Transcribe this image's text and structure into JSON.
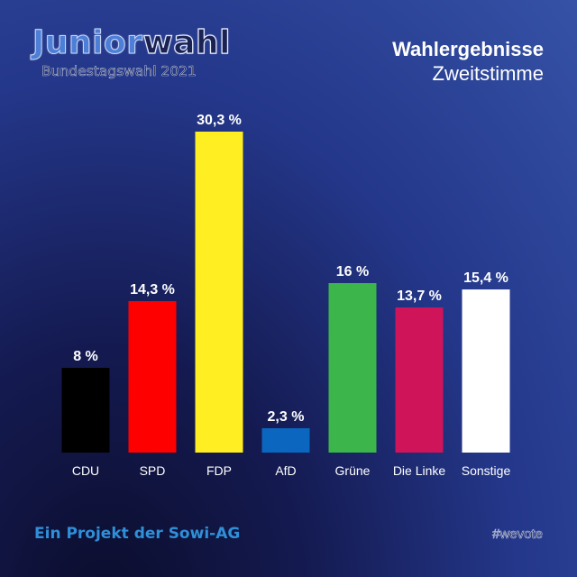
{
  "logo": {
    "part1": "Junior",
    "part2": "wahl",
    "subtitle": "Bundestagswahl 2021"
  },
  "header": {
    "title": "Wahlergebnisse",
    "subtitle": "Zweitstimme"
  },
  "chart_data": {
    "type": "bar",
    "title": "Wahlergebnisse",
    "subtitle": "Zweitstimme",
    "categories": [
      "CDU",
      "SPD",
      "FDP",
      "AfD",
      "Grüne",
      "Die Linke",
      "Sonstige"
    ],
    "values": [
      8,
      14.3,
      30.3,
      2.3,
      16,
      13.7,
      15.4
    ],
    "labels": [
      "8 %",
      "14,3 %",
      "30,3 %",
      "2,3 %",
      "16 %",
      "13,7 %",
      "15,4 %"
    ],
    "colors": [
      "#000000",
      "#ff0000",
      "#ffee22",
      "#0a66bf",
      "#3cb54a",
      "#d0145a",
      "#ffffff"
    ],
    "xlabel": "",
    "ylabel": "",
    "ylim": [
      0,
      30.3
    ],
    "grid": false,
    "legend": "none"
  },
  "footer": {
    "project": "Ein Projekt der Sowi-AG",
    "hashtag": "#wevote"
  }
}
